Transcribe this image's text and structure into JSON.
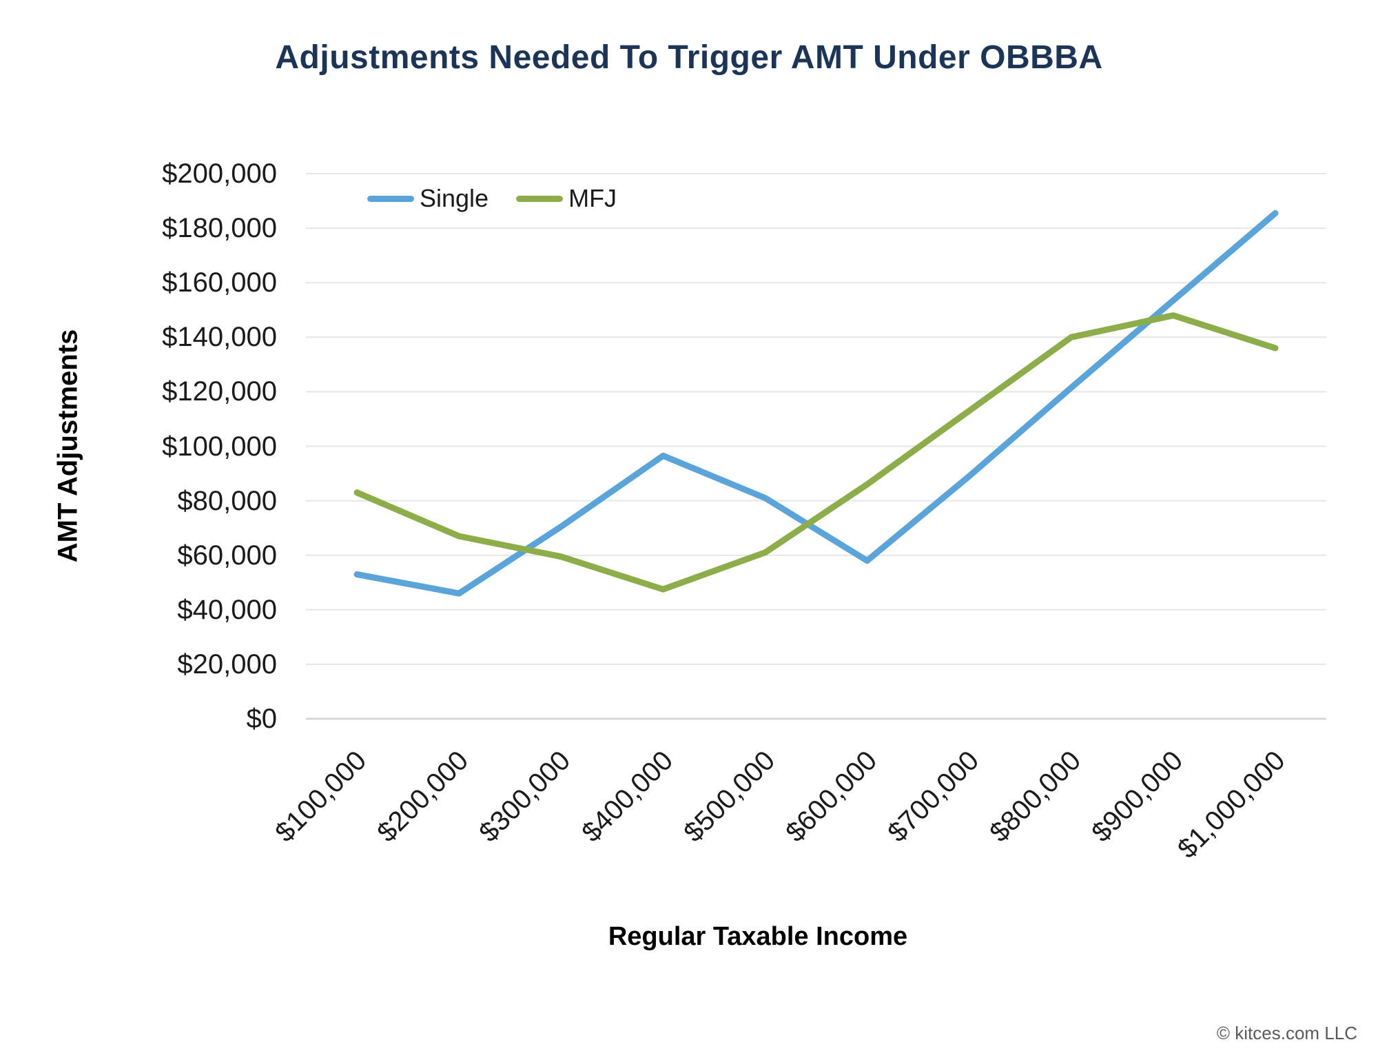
{
  "title": "Adjustments Needed To Trigger AMT Under OBBBA",
  "y_axis_title": "AMT Adjustments",
  "x_axis_title": "Regular Taxable Income",
  "copyright": "© kitces.com LLC",
  "colors": {
    "title_text": "#1C3557",
    "single_line": "#5BA4DA",
    "mfj_line": "#8CAD49",
    "gridline": "#E6E6E6",
    "axis_line": "#D2D2D2",
    "tick_text": "#1A1A1A",
    "copyright_text": "#595959"
  },
  "chart_data": {
    "type": "line",
    "x": [
      100000,
      200000,
      300000,
      400000,
      500000,
      600000,
      700000,
      800000,
      900000,
      1000000
    ],
    "categories": [
      "$100,000",
      "$200,000",
      "$300,000",
      "$400,000",
      "$500,000",
      "$600,000",
      "$700,000",
      "$800,000",
      "$900,000",
      "$1,000,000"
    ],
    "series": [
      {
        "name": "Single",
        "color": "#5BA4DA",
        "values": [
          53000,
          46000,
          70500,
          96500,
          81000,
          58000,
          89000,
          121500,
          153500,
          185500
        ]
      },
      {
        "name": "MFJ",
        "color": "#8CAD49",
        "values": [
          83000,
          67000,
          59500,
          47500,
          61000,
          86000,
          113000,
          140000,
          148000,
          136000
        ]
      }
    ],
    "title": "Adjustments Needed To Trigger AMT Under OBBBA",
    "xlabel": "Regular Taxable Income",
    "ylabel": "AMT Adjustments",
    "ylim": [
      0,
      200000
    ],
    "ytick_step": 20000,
    "ytick_labels": [
      "$0",
      "$20,000",
      "$40,000",
      "$60,000",
      "$80,000",
      "$100,000",
      "$120,000",
      "$140,000",
      "$160,000",
      "$180,000",
      "$200,000"
    ],
    "grid": "horizontal",
    "legend_position": "top-inside"
  }
}
